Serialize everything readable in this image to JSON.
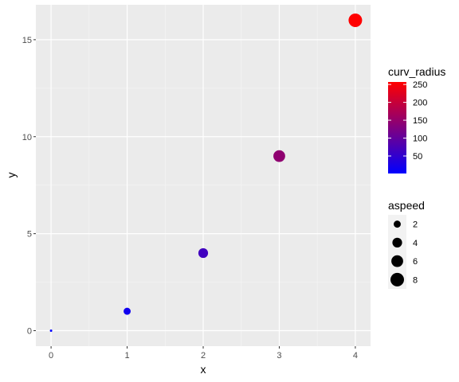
{
  "chart_data": {
    "type": "scatter",
    "title": "",
    "xlabel": "x",
    "ylabel": "y",
    "xlim": [
      -0.2,
      4.2
    ],
    "ylim": [
      -0.8,
      16.8
    ],
    "x_ticks": [
      0,
      1,
      2,
      3,
      4
    ],
    "y_ticks": [
      0,
      5,
      10,
      15
    ],
    "grid": true,
    "points": [
      {
        "x": 0,
        "y": 0,
        "curv_radius": 1,
        "aspeed": 0
      },
      {
        "x": 1,
        "y": 1,
        "curv_radius": 17,
        "aspeed": 2
      },
      {
        "x": 2,
        "y": 4,
        "curv_radius": 65,
        "aspeed": 4
      },
      {
        "x": 3,
        "y": 9,
        "curv_radius": 145,
        "aspeed": 6
      },
      {
        "x": 4,
        "y": 16,
        "curv_radius": 257,
        "aspeed": 8
      }
    ],
    "color_legend": {
      "title": "curv_radius",
      "position": "right",
      "low_color": "#0000ff",
      "high_color": "#ff0000",
      "range": [
        1,
        257
      ],
      "ticks": [
        50,
        100,
        150,
        200,
        250
      ]
    },
    "size_legend": {
      "title": "aspeed",
      "position": "right",
      "range": [
        0,
        8
      ],
      "entries": [
        2,
        4,
        6,
        8
      ]
    }
  }
}
